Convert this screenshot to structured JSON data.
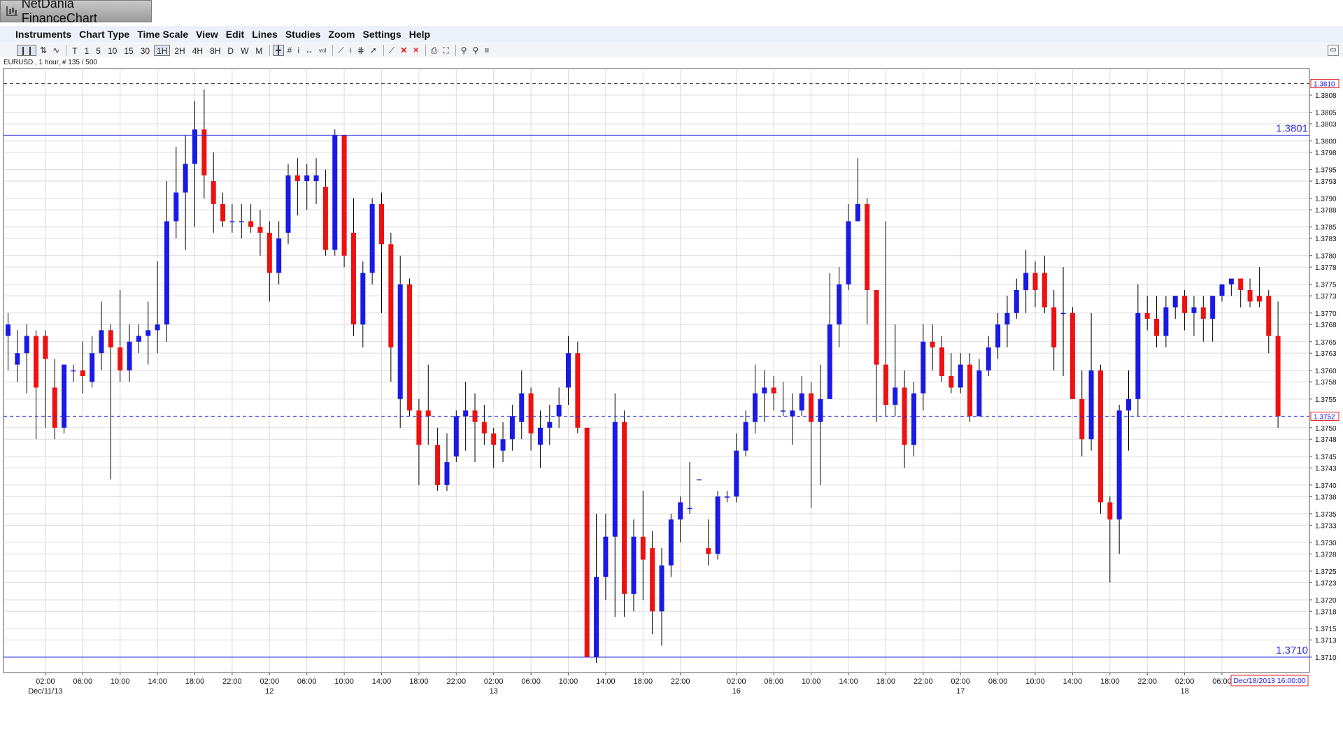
{
  "window": {
    "title": "NetDania FinanceChart"
  },
  "menu": [
    "Instruments",
    "Chart Type",
    "Time Scale",
    "View",
    "Edit",
    "Lines",
    "Studies",
    "Zoom",
    "Settings",
    "Help"
  ],
  "toolbar": {
    "periods": [
      "T",
      "1",
      "5",
      "10",
      "15",
      "30",
      "1H",
      "2H",
      "4H",
      "8H",
      "D",
      "W",
      "M"
    ],
    "active_period": "1H",
    "icons": [
      "candles-icon",
      "bars-icon",
      "line-icon",
      "crosshair-icon",
      "grid-icon",
      "info-icon",
      "pan-icon",
      "volume-icon",
      "trendline-icon",
      "fibonacci-icon",
      "channel-icon",
      "arrow-icon",
      "draw-line-icon",
      "delete-icon",
      "delete-all-icon",
      "print-icon",
      "preview-icon",
      "zoom-in-icon",
      "zoom-out-icon",
      "fit-icon"
    ]
  },
  "instrument": {
    "info": "EURUSD , 1 hour, # 135 / 500"
  },
  "chart_data": {
    "type": "candlestick",
    "symbol": "EURUSD",
    "timeframe": "1 hour",
    "ylim": [
      1.3708,
      1.3817
    ],
    "y_ticks": [
      "1.3710",
      "1.3713",
      "1.3715",
      "1.3718",
      "1.3720",
      "1.3723",
      "1.3725",
      "1.3728",
      "1.3730",
      "1.3733",
      "1.3735",
      "1.3738",
      "1.3740",
      "1.3743",
      "1.3745",
      "1.3748",
      "1.3750",
      "1.3755",
      "1.3758",
      "1.3760",
      "1.3763",
      "1.3765",
      "1.3768",
      "1.3770",
      "1.3773",
      "1.3775",
      "1.3778",
      "1.3780",
      "1.3783",
      "1.3785",
      "1.3788",
      "1.3790",
      "1.3793",
      "1.3795",
      "1.3798",
      "1.3800",
      "1.3803",
      "1.3805",
      "1.3808"
    ],
    "x_ticks": [
      {
        "i": 4,
        "label": "02:00",
        "sub": "Dec/11/13"
      },
      {
        "i": 8,
        "label": "06:00",
        "sub": ""
      },
      {
        "i": 12,
        "label": "10:00",
        "sub": ""
      },
      {
        "i": 16,
        "label": "14:00",
        "sub": ""
      },
      {
        "i": 20,
        "label": "18:00",
        "sub": ""
      },
      {
        "i": 24,
        "label": "22:00",
        "sub": ""
      },
      {
        "i": 28,
        "label": "02:00",
        "sub": "12"
      },
      {
        "i": 32,
        "label": "06:00",
        "sub": ""
      },
      {
        "i": 36,
        "label": "10:00",
        "sub": ""
      },
      {
        "i": 40,
        "label": "14:00",
        "sub": ""
      },
      {
        "i": 44,
        "label": "18:00",
        "sub": ""
      },
      {
        "i": 48,
        "label": "22:00",
        "sub": ""
      },
      {
        "i": 52,
        "label": "02:00",
        "sub": "13"
      },
      {
        "i": 56,
        "label": "06:00",
        "sub": ""
      },
      {
        "i": 60,
        "label": "10:00",
        "sub": ""
      },
      {
        "i": 64,
        "label": "14:00",
        "sub": ""
      },
      {
        "i": 68,
        "label": "18:00",
        "sub": ""
      },
      {
        "i": 72,
        "label": "22:00",
        "sub": ""
      },
      {
        "i": 78,
        "label": "02:00",
        "sub": "16"
      },
      {
        "i": 82,
        "label": "06:00",
        "sub": ""
      },
      {
        "i": 86,
        "label": "10:00",
        "sub": ""
      },
      {
        "i": 90,
        "label": "14:00",
        "sub": ""
      },
      {
        "i": 94,
        "label": "18:00",
        "sub": ""
      },
      {
        "i": 98,
        "label": "22:00",
        "sub": ""
      },
      {
        "i": 102,
        "label": "02:00",
        "sub": "17"
      },
      {
        "i": 106,
        "label": "06:00",
        "sub": ""
      },
      {
        "i": 110,
        "label": "10:00",
        "sub": ""
      },
      {
        "i": 114,
        "label": "14:00",
        "sub": ""
      },
      {
        "i": 118,
        "label": "18:00",
        "sub": ""
      },
      {
        "i": 122,
        "label": "22:00",
        "sub": ""
      },
      {
        "i": 126,
        "label": "02:00",
        "sub": "18"
      },
      {
        "i": 130,
        "label": "06:00",
        "sub": ""
      }
    ],
    "hlines": [
      {
        "value": 1.3801,
        "label": "1.3801",
        "style": "solid",
        "color": "#2a2ae0"
      },
      {
        "value": 1.371,
        "label": "1.3710",
        "style": "solid",
        "color": "#2a2ae0"
      },
      {
        "value": 1.381,
        "label": "1.3810",
        "style": "dashed",
        "color": "#333333"
      },
      {
        "value": 1.3752,
        "label": "1.3752",
        "style": "dashed",
        "color": "#2a2ae0"
      }
    ],
    "last_price_label": "1.3752",
    "high_price_label": "1.3810",
    "current_time_label": "Dec/18/2013 16:00:00",
    "colors": {
      "up": "#1a1ae6",
      "down": "#ee1111",
      "grid": "#dcdcdc",
      "wick": "#000000"
    },
    "candles": [
      [
        1.3766,
        1.377,
        1.376,
        1.3768
      ],
      [
        1.3761,
        1.3767,
        1.3758,
        1.3763
      ],
      [
        1.3763,
        1.3768,
        1.3756,
        1.3766
      ],
      [
        1.3766,
        1.3767,
        1.3748,
        1.3757
      ],
      [
        1.3766,
        1.3767,
        1.375,
        1.3762
      ],
      [
        1.3757,
        1.3762,
        1.3748,
        1.375
      ],
      [
        1.375,
        1.3761,
        1.3749,
        1.3761
      ],
      [
        1.376,
        1.3761,
        1.3758,
        1.376
      ],
      [
        1.376,
        1.3765,
        1.3756,
        1.3759
      ],
      [
        1.3758,
        1.3766,
        1.3757,
        1.3763
      ],
      [
        1.3763,
        1.3772,
        1.376,
        1.3767
      ],
      [
        1.3767,
        1.3768,
        1.3741,
        1.3764
      ],
      [
        1.3764,
        1.3774,
        1.3758,
        1.376
      ],
      [
        1.376,
        1.3768,
        1.3758,
        1.3765
      ],
      [
        1.3765,
        1.3768,
        1.3763,
        1.3766
      ],
      [
        1.3766,
        1.3772,
        1.3761,
        1.3767
      ],
      [
        1.3767,
        1.3779,
        1.3763,
        1.3768
      ],
      [
        1.3768,
        1.3793,
        1.3765,
        1.3786
      ],
      [
        1.3786,
        1.3799,
        1.3783,
        1.3791
      ],
      [
        1.3791,
        1.3801,
        1.3781,
        1.3796
      ],
      [
        1.3796,
        1.3807,
        1.3785,
        1.3802
      ],
      [
        1.3802,
        1.3809,
        1.379,
        1.3794
      ],
      [
        1.3793,
        1.3798,
        1.3784,
        1.3789
      ],
      [
        1.3789,
        1.3791,
        1.3785,
        1.3786
      ],
      [
        1.3786,
        1.3789,
        1.3784,
        1.3786
      ],
      [
        1.3786,
        1.3789,
        1.3783,
        1.3786
      ],
      [
        1.3786,
        1.3789,
        1.3784,
        1.3785
      ],
      [
        1.3785,
        1.3788,
        1.378,
        1.3784
      ],
      [
        1.3784,
        1.3786,
        1.3772,
        1.3777
      ],
      [
        1.3777,
        1.3786,
        1.3775,
        1.3783
      ],
      [
        1.3784,
        1.3796,
        1.3782,
        1.3794
      ],
      [
        1.3794,
        1.3797,
        1.3787,
        1.3793
      ],
      [
        1.3793,
        1.3796,
        1.3788,
        1.3794
      ],
      [
        1.3793,
        1.3797,
        1.3789,
        1.3794
      ],
      [
        1.3792,
        1.3795,
        1.378,
        1.3781
      ],
      [
        1.3781,
        1.3802,
        1.378,
        1.3801
      ],
      [
        1.3801,
        1.3801,
        1.3778,
        1.378
      ],
      [
        1.3784,
        1.379,
        1.3766,
        1.3768
      ],
      [
        1.3768,
        1.3779,
        1.3764,
        1.3777
      ],
      [
        1.3777,
        1.379,
        1.3775,
        1.3789
      ],
      [
        1.3789,
        1.3791,
        1.377,
        1.3782
      ],
      [
        1.3782,
        1.3784,
        1.3758,
        1.3764
      ],
      [
        1.3755,
        1.378,
        1.375,
        1.3775
      ],
      [
        1.3775,
        1.3776,
        1.3752,
        1.3753
      ],
      [
        1.3753,
        1.3755,
        1.374,
        1.3747
      ],
      [
        1.3753,
        1.3761,
        1.3747,
        1.3752
      ],
      [
        1.3747,
        1.375,
        1.3739,
        1.374
      ],
      [
        1.374,
        1.3749,
        1.3739,
        1.3744
      ],
      [
        1.3745,
        1.3753,
        1.3744,
        1.3752
      ],
      [
        1.3752,
        1.3758,
        1.3746,
        1.3753
      ],
      [
        1.3753,
        1.3756,
        1.3744,
        1.3751
      ],
      [
        1.3751,
        1.3754,
        1.3747,
        1.3749
      ],
      [
        1.3749,
        1.375,
        1.3743,
        1.3747
      ],
      [
        1.3746,
        1.3751,
        1.3744,
        1.3748
      ],
      [
        1.3748,
        1.3754,
        1.3746,
        1.3752
      ],
      [
        1.3751,
        1.376,
        1.3748,
        1.3756
      ],
      [
        1.3756,
        1.3757,
        1.3746,
        1.3749
      ],
      [
        1.3747,
        1.3753,
        1.3743,
        1.375
      ],
      [
        1.375,
        1.3754,
        1.3747,
        1.3751
      ],
      [
        1.3752,
        1.3757,
        1.375,
        1.3754
      ],
      [
        1.3757,
        1.3766,
        1.3754,
        1.3763
      ],
      [
        1.3763,
        1.3765,
        1.3749,
        1.375
      ],
      [
        1.375,
        1.375,
        1.371,
        1.371
      ],
      [
        1.371,
        1.3735,
        1.3709,
        1.3724
      ],
      [
        1.3724,
        1.3735,
        1.372,
        1.3731
      ],
      [
        1.3731,
        1.3756,
        1.3717,
        1.3751
      ],
      [
        1.3751,
        1.3753,
        1.3717,
        1.3721
      ],
      [
        1.3721,
        1.3734,
        1.3718,
        1.3731
      ],
      [
        1.3731,
        1.3739,
        1.372,
        1.3727
      ],
      [
        1.3729,
        1.3732,
        1.3714,
        1.3718
      ],
      [
        1.3718,
        1.3729,
        1.3712,
        1.3726
      ],
      [
        1.3726,
        1.3735,
        1.3724,
        1.3734
      ],
      [
        1.3734,
        1.3738,
        1.373,
        1.3737
      ],
      [
        1.3736,
        1.3744,
        1.3735,
        1.3736
      ],
      [
        1.3741,
        1.3741,
        1.3741,
        1.3741
      ],
      [
        1.3729,
        1.3734,
        1.3726,
        1.3728
      ],
      [
        1.3728,
        1.3739,
        1.3727,
        1.3738
      ],
      [
        1.3738,
        1.3739,
        1.3737,
        1.3738
      ],
      [
        1.3738,
        1.3749,
        1.3737,
        1.3746
      ],
      [
        1.3746,
        1.3753,
        1.3745,
        1.3751
      ],
      [
        1.3751,
        1.3761,
        1.3749,
        1.3756
      ],
      [
        1.3756,
        1.376,
        1.3751,
        1.3757
      ],
      [
        1.3757,
        1.3759,
        1.3753,
        1.3756
      ],
      [
        1.3753,
        1.3758,
        1.3752,
        1.3753
      ],
      [
        1.3752,
        1.3756,
        1.3747,
        1.3753
      ],
      [
        1.3753,
        1.3759,
        1.3752,
        1.3756
      ],
      [
        1.3756,
        1.3758,
        1.3736,
        1.3751
      ],
      [
        1.3751,
        1.3761,
        1.374,
        1.3755
      ],
      [
        1.3755,
        1.3777,
        1.3755,
        1.3768
      ],
      [
        1.3768,
        1.3778,
        1.3764,
        1.3775
      ],
      [
        1.3775,
        1.3789,
        1.3774,
        1.3786
      ],
      [
        1.3786,
        1.3797,
        1.3787,
        1.3789
      ],
      [
        1.3789,
        1.379,
        1.3768,
        1.3774
      ],
      [
        1.3774,
        1.3774,
        1.3751,
        1.3761
      ],
      [
        1.3761,
        1.3786,
        1.3752,
        1.3754
      ],
      [
        1.3754,
        1.3768,
        1.3752,
        1.3757
      ],
      [
        1.3757,
        1.376,
        1.3743,
        1.3747
      ],
      [
        1.3747,
        1.3758,
        1.3745,
        1.3756
      ],
      [
        1.3756,
        1.3768,
        1.3753,
        1.3765
      ],
      [
        1.3765,
        1.3768,
        1.376,
        1.3764
      ],
      [
        1.3764,
        1.3766,
        1.3758,
        1.3759
      ],
      [
        1.3759,
        1.3763,
        1.3756,
        1.3757
      ],
      [
        1.3757,
        1.3763,
        1.3756,
        1.3761
      ],
      [
        1.3761,
        1.3763,
        1.3751,
        1.3752
      ],
      [
        1.3752,
        1.3762,
        1.3752,
        1.376
      ],
      [
        1.376,
        1.3766,
        1.3759,
        1.3764
      ],
      [
        1.3764,
        1.377,
        1.3762,
        1.3768
      ],
      [
        1.3768,
        1.3773,
        1.3764,
        1.377
      ],
      [
        1.377,
        1.3776,
        1.3769,
        1.3774
      ],
      [
        1.3774,
        1.3781,
        1.377,
        1.3777
      ],
      [
        1.3777,
        1.3779,
        1.3771,
        1.3774
      ],
      [
        1.3777,
        1.378,
        1.377,
        1.3771
      ],
      [
        1.3771,
        1.3774,
        1.376,
        1.3764
      ],
      [
        1.377,
        1.3778,
        1.3759,
        1.377
      ],
      [
        1.377,
        1.3771,
        1.3755,
        1.3755
      ],
      [
        1.3755,
        1.376,
        1.3745,
        1.3748
      ],
      [
        1.3748,
        1.377,
        1.3746,
        1.376
      ],
      [
        1.376,
        1.3761,
        1.3735,
        1.3737
      ],
      [
        1.3737,
        1.3738,
        1.3723,
        1.3734
      ],
      [
        1.3734,
        1.3754,
        1.3728,
        1.3753
      ],
      [
        1.3753,
        1.376,
        1.3746,
        1.3755
      ],
      [
        1.3755,
        1.3775,
        1.3752,
        1.377
      ],
      [
        1.377,
        1.3773,
        1.3767,
        1.3769
      ],
      [
        1.3769,
        1.3773,
        1.3764,
        1.3766
      ],
      [
        1.3766,
        1.3773,
        1.3764,
        1.3771
      ],
      [
        1.3771,
        1.3773,
        1.3769,
        1.3773
      ],
      [
        1.3773,
        1.3774,
        1.3767,
        1.377
      ],
      [
        1.377,
        1.3773,
        1.3766,
        1.3771
      ],
      [
        1.3771,
        1.3773,
        1.3765,
        1.3769
      ],
      [
        1.3769,
        1.3772,
        1.3765,
        1.3773
      ],
      [
        1.3773,
        1.3775,
        1.3772,
        1.3775
      ],
      [
        1.3775,
        1.3776,
        1.3773,
        1.3776
      ],
      [
        1.3776,
        1.3776,
        1.3771,
        1.3774
      ],
      [
        1.3774,
        1.3776,
        1.3771,
        1.3772
      ],
      [
        1.3773,
        1.3778,
        1.3771,
        1.3772
      ],
      [
        1.3773,
        1.3774,
        1.3763,
        1.3766
      ],
      [
        1.3766,
        1.3772,
        1.375,
        1.3752
      ]
    ]
  }
}
